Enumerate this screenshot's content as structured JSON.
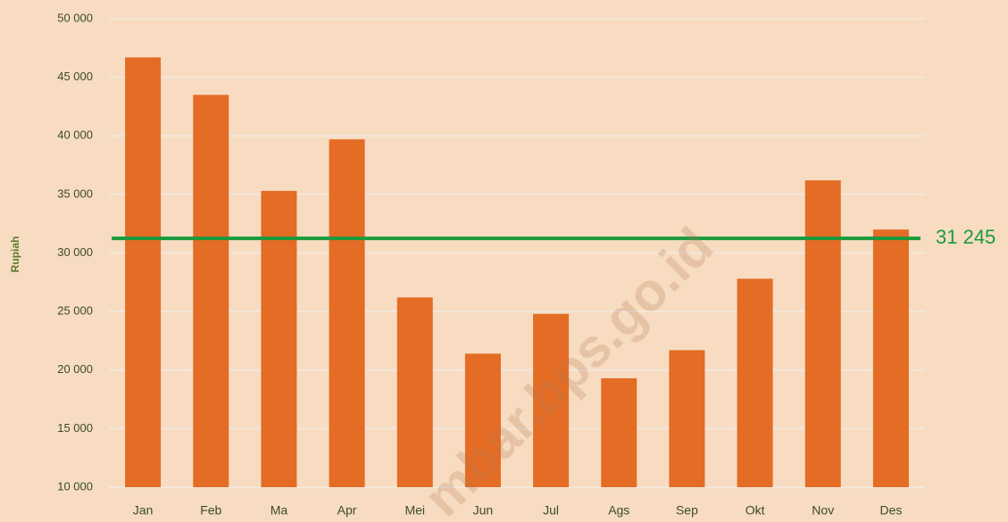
{
  "chart_data": {
    "type": "bar",
    "ylabel": "Rupiah",
    "categories": [
      "Jan",
      "Feb",
      "Ma",
      "Apr",
      "Mei",
      "Jun",
      "Jul",
      "Ags",
      "Sep",
      "Okt",
      "Nov",
      "Des"
    ],
    "values": [
      46700,
      43500,
      35300,
      39700,
      26200,
      21400,
      24800,
      19300,
      21700,
      27800,
      36200,
      32000
    ],
    "color": "#e46c25",
    "ylim": [
      10000,
      50000
    ],
    "yticks": [
      {
        "value": 10000,
        "label": "10 000"
      },
      {
        "value": 15000,
        "label": "15 000"
      },
      {
        "value": 20000,
        "label": "20 000"
      },
      {
        "value": 25000,
        "label": "25 000"
      },
      {
        "value": 30000,
        "label": "30 000"
      },
      {
        "value": 35000,
        "label": "35 000"
      },
      {
        "value": 40000,
        "label": "40 000"
      },
      {
        "value": 45000,
        "label": "45 000"
      },
      {
        "value": 50000,
        "label": "50 000"
      }
    ],
    "grid": true,
    "reference_line": {
      "value": 31245,
      "label": "31 245",
      "color": "#1a9a3c"
    },
    "watermark": "mbar.bps.go.id"
  }
}
